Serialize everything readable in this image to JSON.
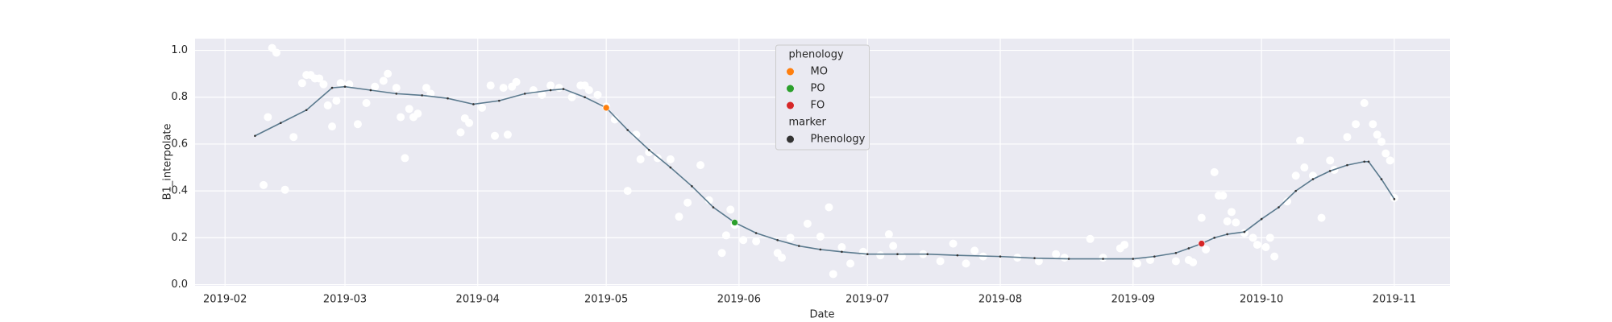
{
  "chart_data": {
    "type": "scatter",
    "xlabel": "Date",
    "ylabel": "B1_interpolate",
    "xlim": [
      24,
      317
    ],
    "ylim": [
      -0.005,
      1.05
    ],
    "xticks": [
      {
        "value": 31,
        "label": "2019-02"
      },
      {
        "value": 59,
        "label": "2019-03"
      },
      {
        "value": 90,
        "label": "2019-04"
      },
      {
        "value": 120,
        "label": "2019-05"
      },
      {
        "value": 151,
        "label": "2019-06"
      },
      {
        "value": 181,
        "label": "2019-07"
      },
      {
        "value": 212,
        "label": "2019-08"
      },
      {
        "value": 243,
        "label": "2019-09"
      },
      {
        "value": 273,
        "label": "2019-10"
      },
      {
        "value": 304,
        "label": "2019-11"
      }
    ],
    "yticks": [
      {
        "value": 0,
        "label": "0.0"
      },
      0.2,
      0.4,
      0.6,
      0.8,
      {
        "value": 1,
        "label": "1.0"
      }
    ],
    "grid": true,
    "background": "#eaeaf2",
    "raw": {
      "color": "#ffffff",
      "x": [
        40,
        41,
        42,
        43,
        45,
        47,
        49,
        50,
        51,
        52,
        53,
        54,
        55,
        56,
        57,
        58,
        60,
        62,
        64,
        66,
        68,
        69,
        71,
        72,
        73,
        74,
        75,
        76,
        78,
        79,
        86,
        87,
        88,
        91,
        93,
        94,
        96,
        97,
        98,
        99,
        103,
        105,
        107,
        109,
        112,
        114,
        115,
        116,
        118,
        120,
        122,
        125,
        127,
        128,
        130,
        132,
        135,
        137,
        139,
        142,
        144,
        147,
        148,
        149,
        150,
        152,
        155,
        160,
        161,
        163,
        167,
        170,
        172,
        173,
        175,
        177,
        180,
        184,
        186,
        187,
        189,
        194,
        198,
        201,
        204,
        206,
        208,
        216,
        221,
        225,
        227,
        233,
        236,
        240,
        241,
        244,
        247,
        253,
        256,
        257,
        259,
        260,
        262,
        263,
        264,
        265,
        266,
        267,
        269,
        271,
        272,
        274,
        275,
        276,
        279,
        281,
        282,
        283,
        285,
        287,
        289,
        290,
        293,
        295,
        297,
        299,
        300,
        301,
        302,
        303,
        304
      ],
      "y": [
        0.425,
        0.715,
        1.01,
        0.99,
        0.405,
        0.63,
        0.86,
        0.895,
        0.895,
        0.88,
        0.88,
        0.855,
        0.765,
        0.675,
        0.785,
        0.86,
        0.855,
        0.685,
        0.775,
        0.845,
        0.87,
        0.9,
        0.84,
        0.715,
        0.54,
        0.75,
        0.715,
        0.73,
        0.84,
        0.815,
        0.65,
        0.71,
        0.69,
        0.755,
        0.85,
        0.635,
        0.84,
        0.64,
        0.845,
        0.865,
        0.83,
        0.81,
        0.85,
        0.84,
        0.8,
        0.85,
        0.85,
        0.83,
        0.81,
        0.76,
        0.705,
        0.4,
        0.64,
        0.535,
        0.565,
        0.54,
        0.535,
        0.29,
        0.35,
        0.51,
        0.36,
        0.135,
        0.21,
        0.32,
        0.255,
        0.19,
        0.185,
        0.135,
        0.115,
        0.2,
        0.26,
        0.205,
        0.33,
        0.045,
        0.16,
        0.09,
        0.14,
        0.125,
        0.215,
        0.165,
        0.12,
        0.13,
        0.1,
        0.175,
        0.09,
        0.145,
        0.12,
        0.115,
        0.1,
        0.13,
        0.115,
        0.195,
        0.115,
        0.155,
        0.17,
        0.09,
        0.105,
        0.1,
        0.105,
        0.095,
        0.285,
        0.15,
        0.48,
        0.38,
        0.38,
        0.27,
        0.31,
        0.265,
        0.22,
        0.2,
        0.17,
        0.16,
        0.2,
        0.12,
        0.355,
        0.465,
        0.615,
        0.5,
        0.465,
        0.285,
        0.53,
        0.49,
        0.63,
        0.685,
        0.775,
        0.685,
        0.64,
        0.61,
        0.56,
        0.53,
        0.37
      ]
    },
    "interpolated": {
      "color": "#5b7a8e",
      "marker_color": "#333333",
      "x": [
        38,
        44,
        50,
        56,
        59,
        65,
        71,
        77,
        83,
        89,
        95,
        101,
        107,
        110,
        115,
        120,
        125,
        130,
        135,
        140,
        145,
        150,
        155,
        160,
        165,
        170,
        175,
        181,
        188,
        195,
        202,
        212,
        220,
        228,
        236,
        243,
        248,
        253,
        256,
        259,
        262,
        265,
        269,
        273,
        277,
        281,
        285,
        289,
        293,
        297,
        298,
        301,
        304
      ],
      "y": [
        0.635,
        0.69,
        0.745,
        0.84,
        0.845,
        0.83,
        0.815,
        0.808,
        0.795,
        0.77,
        0.785,
        0.815,
        0.83,
        0.835,
        0.8,
        0.755,
        0.66,
        0.575,
        0.5,
        0.42,
        0.33,
        0.265,
        0.22,
        0.19,
        0.165,
        0.15,
        0.14,
        0.13,
        0.13,
        0.13,
        0.125,
        0.12,
        0.113,
        0.11,
        0.11,
        0.11,
        0.12,
        0.135,
        0.155,
        0.175,
        0.2,
        0.215,
        0.225,
        0.28,
        0.33,
        0.4,
        0.45,
        0.485,
        0.51,
        0.525,
        0.525,
        0.45,
        0.365
      ]
    },
    "legend_loc": "upper center",
    "hue_title": "phenology",
    "series": [
      {
        "name": "MO",
        "color": "#ff7f0e",
        "x": [
          120
        ],
        "y": [
          0.755
        ]
      },
      {
        "name": "PO",
        "color": "#2ca02c",
        "x": [
          150
        ],
        "y": [
          0.265
        ]
      },
      {
        "name": "FO",
        "color": "#d62728",
        "x": [
          259
        ],
        "y": [
          0.175
        ]
      }
    ],
    "style_title": "marker",
    "style_entries": [
      {
        "name": "Phenology",
        "color": "#333333"
      }
    ]
  }
}
